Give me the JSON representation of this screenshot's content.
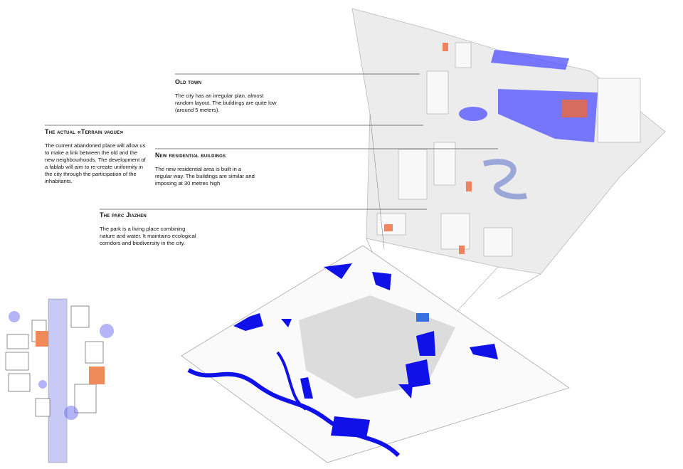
{
  "annotations": [
    {
      "title": "Old town",
      "text": "The city has an irregular plan, almost random layout. The buildings are quite low (around 5 meters)."
    },
    {
      "title": "The actual «Terrain vague»",
      "text": "The current abandoned place will allow us to make a link between the old and the new neighbourhoods. The development of a fablab will aim to re-create uniformity in the city through the participation of the inhabitants."
    },
    {
      "title": "New residential buildings",
      "text": "The new residential area is built in a regular way. The buildings are similar and imposing at 30 metres high"
    },
    {
      "title": "The parc Jiazhen",
      "text": "The park is a living place combining nature and water. It maintains ecological corridors and biodiversity in the city."
    }
  ]
}
